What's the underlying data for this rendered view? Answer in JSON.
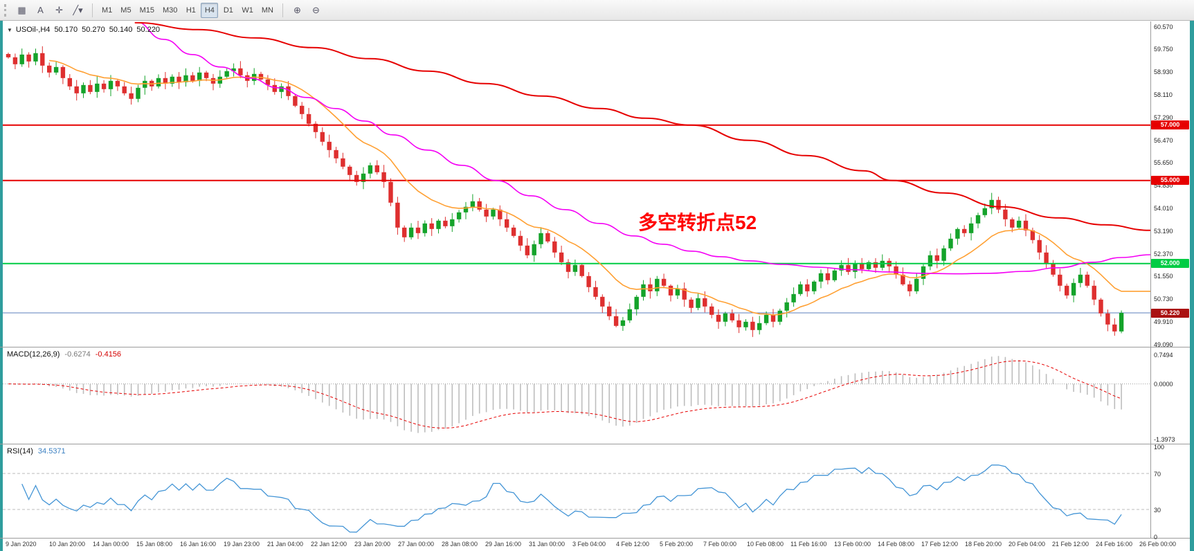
{
  "toolbar": {
    "tools": [
      {
        "name": "grid-tool",
        "glyph": "▦"
      },
      {
        "name": "text-tool",
        "glyph": "A"
      },
      {
        "name": "crosshair-tool",
        "glyph": "✛"
      },
      {
        "name": "line-studies",
        "glyph": "╱▾"
      }
    ],
    "timeframes": [
      "M1",
      "M5",
      "M15",
      "M30",
      "H1",
      "H4",
      "D1",
      "W1",
      "MN"
    ],
    "active_timeframe": "H4",
    "right_tools": [
      {
        "name": "zoom-in",
        "glyph": "⊕"
      },
      {
        "name": "zoom-out",
        "glyph": "⊖"
      }
    ]
  },
  "chart": {
    "header": {
      "toggle_glyph": "▼",
      "symbol": "USOil-,H4",
      "open": "50.170",
      "high": "50.270",
      "low": "50.140",
      "close": "50.220"
    },
    "annotation": {
      "text": "多空转折点52",
      "color": "#FF0000"
    },
    "y_axis_ticks": [
      "60.570",
      "59.750",
      "58.930",
      "58.110",
      "57.290",
      "56.470",
      "55.650",
      "54.830",
      "54.010",
      "53.190",
      "52.370",
      "51.550",
      "50.730",
      "49.910",
      "49.090"
    ],
    "hlines": [
      {
        "price": 57.0,
        "label": "57.000",
        "color": "#e60000"
      },
      {
        "price": 55.0,
        "label": "55.000",
        "color": "#e60000"
      },
      {
        "price": 52.0,
        "label": "52.000",
        "color": "#00cc44"
      }
    ],
    "bid_line": {
      "price": 50.22,
      "label": "50.220",
      "line_color": "#5b7fbe",
      "box_color": "#aa1111"
    }
  },
  "chart_data": {
    "type": "candlestick",
    "symbol": "USOil-",
    "timeframe": "H4",
    "up_color": "#14a32a",
    "down_color": "#de2f2f",
    "closes": [
      59.45,
      59.2,
      59.55,
      59.3,
      59.6,
      59.15,
      58.9,
      59.1,
      58.7,
      58.4,
      58.15,
      58.45,
      58.2,
      58.5,
      58.3,
      58.6,
      58.4,
      58.15,
      57.95,
      58.35,
      58.6,
      58.4,
      58.7,
      58.5,
      58.75,
      58.55,
      58.8,
      58.6,
      58.9,
      58.7,
      58.5,
      58.75,
      58.95,
      59.05,
      58.8,
      58.6,
      58.85,
      58.65,
      58.45,
      58.2,
      58.4,
      58.05,
      57.7,
      57.4,
      57.05,
      56.75,
      56.4,
      56.1,
      55.8,
      55.5,
      55.2,
      54.95,
      55.25,
      55.55,
      55.3,
      54.95,
      54.2,
      53.3,
      52.95,
      53.3,
      53.1,
      53.45,
      53.25,
      53.55,
      53.35,
      53.6,
      53.85,
      54.05,
      54.25,
      53.95,
      53.7,
      53.95,
      53.6,
      53.3,
      53.0,
      52.65,
      52.3,
      52.7,
      53.1,
      52.8,
      52.4,
      52.05,
      51.7,
      51.95,
      51.55,
      51.15,
      50.8,
      50.45,
      50.1,
      49.75,
      49.95,
      50.35,
      50.8,
      51.25,
      51.0,
      51.45,
      51.2,
      50.85,
      51.1,
      50.7,
      50.4,
      50.75,
      50.45,
      50.15,
      49.9,
      50.2,
      49.95,
      49.7,
      49.9,
      49.6,
      49.85,
      50.15,
      49.9,
      50.3,
      50.6,
      50.9,
      51.25,
      51.0,
      51.35,
      51.65,
      51.4,
      51.75,
      51.95,
      51.7,
      52.0,
      51.8,
      52.05,
      51.85,
      52.1,
      51.9,
      51.6,
      51.25,
      51.0,
      51.45,
      51.9,
      52.3,
      52.1,
      52.55,
      52.9,
      53.25,
      53.1,
      53.45,
      53.75,
      54.0,
      54.3,
      53.95,
      53.6,
      53.3,
      53.55,
      53.2,
      52.85,
      52.4,
      52.0,
      51.6,
      51.2,
      50.85,
      51.3,
      51.6,
      51.2,
      50.7,
      50.2,
      49.8,
      49.55,
      50.22
    ],
    "moving_averages": [
      {
        "name": "fast-ma",
        "style": "ema",
        "period": 14,
        "color": "#ffa033",
        "width": 1.6
      },
      {
        "name": "mid-ma",
        "style": "anchors",
        "color": "#f400f4",
        "width": 1.6,
        "points": [
          [
            0.115,
            60.75
          ],
          [
            0.14,
            60.1
          ],
          [
            0.165,
            59.55
          ],
          [
            0.19,
            59.1
          ],
          [
            0.215,
            58.7
          ],
          [
            0.24,
            58.35
          ],
          [
            0.265,
            58.0
          ],
          [
            0.29,
            57.6
          ],
          [
            0.315,
            57.15
          ],
          [
            0.34,
            56.65
          ],
          [
            0.37,
            56.1
          ],
          [
            0.4,
            55.55
          ],
          [
            0.43,
            55.0
          ],
          [
            0.46,
            54.45
          ],
          [
            0.49,
            53.95
          ],
          [
            0.52,
            53.45
          ],
          [
            0.55,
            53.0
          ],
          [
            0.575,
            52.7
          ],
          [
            0.6,
            52.45
          ],
          [
            0.625,
            52.25
          ],
          [
            0.65,
            52.1
          ],
          [
            0.68,
            51.97
          ],
          [
            0.71,
            51.87
          ],
          [
            0.74,
            51.78
          ],
          [
            0.77,
            51.7
          ],
          [
            0.8,
            51.65
          ],
          [
            0.83,
            51.63
          ],
          [
            0.86,
            51.65
          ],
          [
            0.89,
            51.72
          ],
          [
            0.92,
            51.85
          ],
          [
            0.95,
            52.05
          ],
          [
            0.975,
            52.22
          ],
          [
            1.0,
            52.32
          ]
        ]
      },
      {
        "name": "slow-ma",
        "style": "anchors",
        "color": "#e60000",
        "width": 2,
        "points": [
          [
            0.115,
            60.7
          ],
          [
            0.17,
            60.45
          ],
          [
            0.22,
            60.15
          ],
          [
            0.27,
            59.8
          ],
          [
            0.32,
            59.4
          ],
          [
            0.37,
            58.95
          ],
          [
            0.42,
            58.5
          ],
          [
            0.47,
            58.05
          ],
          [
            0.52,
            57.6
          ],
          [
            0.56,
            57.25
          ],
          [
            0.6,
            57.0
          ],
          [
            0.65,
            56.45
          ],
          [
            0.7,
            55.9
          ],
          [
            0.75,
            55.35
          ],
          [
            0.775,
            55.0
          ],
          [
            0.82,
            54.55
          ],
          [
            0.87,
            54.05
          ],
          [
            0.92,
            53.65
          ],
          [
            0.96,
            53.4
          ],
          [
            1.0,
            53.2
          ]
        ]
      }
    ]
  },
  "macd": {
    "title": "MACD(12,26,9)",
    "value_main": "-0.6274",
    "value_signal": "-0.4156",
    "fast": 12,
    "slow": 26,
    "signal": 9,
    "histogram_color": "#bdbdbd",
    "signal_color": "#e60000",
    "axis_labels": [
      {
        "value": 0.7494,
        "label": "0.7494"
      },
      {
        "value": 0,
        "label": "0.0000"
      },
      {
        "value": -1.3973,
        "label": "-1.3973"
      }
    ]
  },
  "rsi": {
    "title": "RSI(14)",
    "value": "34.5371",
    "period": 14,
    "line_color": "#4495d6",
    "levels": [
      70,
      30
    ],
    "axis_labels": [
      {
        "value": 100,
        "label": "100"
      },
      {
        "value": 70,
        "label": "70"
      },
      {
        "value": 30,
        "label": "30"
      },
      {
        "value": 0,
        "label": "0"
      }
    ]
  },
  "time_axis": {
    "labels": [
      "9 Jan 2020",
      "10 Jan 20:00",
      "14 Jan 00:00",
      "15 Jan 08:00",
      "16 Jan 16:00",
      "19 Jan 23:00",
      "21 Jan 04:00",
      "22 Jan 12:00",
      "23 Jan 20:00",
      "27 Jan 00:00",
      "28 Jan 08:00",
      "29 Jan 16:00",
      "31 Jan 00:00",
      "3 Feb 04:00",
      "4 Feb 12:00",
      "5 Feb 20:00",
      "7 Feb 00:00",
      "10 Feb 08:00",
      "11 Feb 16:00",
      "13 Feb 00:00",
      "14 Feb 08:00",
      "17 Feb 12:00",
      "18 Feb 20:00",
      "20 Feb 04:00",
      "21 Feb 12:00",
      "24 Feb 16:00",
      "26 Feb 00:00"
    ]
  }
}
